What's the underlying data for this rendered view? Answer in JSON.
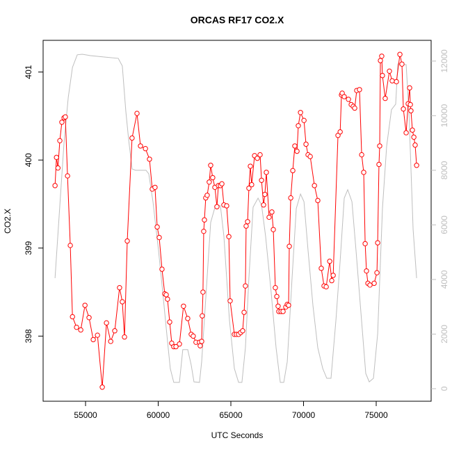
{
  "chart_data": {
    "type": "line",
    "title": "ORCAS RF17 CO2.X",
    "x_label": "UTC Seconds",
    "y_label": "CO2.X",
    "xlim": [
      52080,
      78780
    ],
    "ylim": [
      397.26,
      401.36
    ],
    "y2lim": [
      -460,
      12760
    ],
    "xticks": [
      55000,
      60000,
      65000,
      70000,
      75000
    ],
    "yticks": [
      398,
      399,
      400,
      401
    ],
    "y2ticks": [
      0,
      2000,
      4000,
      6000,
      8000,
      10000,
      12000
    ],
    "y2_color": "#bebebe",
    "grid": false,
    "series": [
      {
        "color": "#ff0000",
        "marker": "circle",
        "x": [
          52900,
          53000,
          53100,
          53230,
          53370,
          53520,
          53610,
          53760,
          53950,
          54100,
          54380,
          54670,
          54960,
          55240,
          55530,
          55820,
          56150,
          56440,
          56730,
          57010,
          57340,
          57530,
          57680,
          57870,
          58200,
          58540,
          58780,
          59120,
          59400,
          59590,
          59780,
          59930,
          60070,
          60260,
          60450,
          60550,
          60640,
          60790,
          60930,
          61070,
          61220,
          61460,
          61740,
          62030,
          62270,
          62410,
          62600,
          62840,
          62890,
          62990,
          63030,
          63080,
          63130,
          63180,
          63270,
          63370,
          63510,
          63610,
          63750,
          63900,
          64040,
          64140,
          64280,
          64380,
          64520,
          64710,
          64860,
          64950,
          65240,
          65380,
          65530,
          65670,
          65810,
          65910,
          66000,
          66050,
          66150,
          66240,
          66340,
          66430,
          66630,
          66820,
          67010,
          67110,
          67250,
          67340,
          67440,
          67630,
          67820,
          67920,
          68060,
          68160,
          68250,
          68300,
          68450,
          68590,
          68780,
          68880,
          68970,
          69020,
          69120,
          69260,
          69400,
          69550,
          69640,
          69790,
          70030,
          70170,
          70310,
          70460,
          70750,
          70980,
          71220,
          71410,
          71560,
          71800,
          71940,
          72040,
          72370,
          72520,
          72610,
          72660,
          72800,
          73090,
          73280,
          73420,
          73520,
          73660,
          73850,
          74000,
          74140,
          74240,
          74330,
          74430,
          74570,
          74860,
          75050,
          75100,
          75190,
          75240,
          75290,
          75380,
          75430,
          75620,
          75910,
          76100,
          76390,
          76630,
          76770,
          76870,
          77060,
          77200,
          77300,
          77350,
          77390,
          77490,
          77590,
          77680,
          77780
        ],
        "values": [
          399.71,
          400.03,
          399.91,
          400.22,
          400.43,
          400.48,
          400.49,
          399.82,
          399.03,
          398.22,
          398.1,
          398.07,
          398.35,
          398.21,
          397.96,
          398.01,
          397.42,
          398.15,
          397.94,
          398.06,
          398.55,
          398.39,
          397.99,
          399.08,
          400.25,
          400.53,
          400.16,
          400.13,
          400.01,
          399.67,
          399.69,
          399.24,
          399.12,
          398.76,
          398.48,
          398.47,
          398.42,
          398.16,
          397.92,
          397.88,
          397.88,
          397.91,
          398.34,
          398.2,
          398.02,
          398.0,
          397.93,
          397.93,
          397.89,
          397.94,
          398.23,
          398.5,
          399.19,
          399.32,
          399.57,
          399.6,
          399.75,
          399.94,
          399.8,
          399.69,
          399.47,
          399.71,
          399.71,
          399.73,
          399.49,
          399.48,
          399.13,
          398.4,
          398.02,
          398.02,
          398.02,
          398.04,
          398.06,
          398.27,
          398.57,
          399.25,
          399.3,
          399.68,
          399.93,
          399.72,
          400.05,
          400.02,
          400.06,
          399.77,
          399.49,
          399.61,
          399.86,
          399.35,
          399.41,
          399.21,
          398.55,
          398.45,
          398.34,
          398.28,
          398.28,
          398.28,
          398.33,
          398.36,
          398.35,
          399.02,
          399.57,
          399.88,
          400.16,
          400.1,
          400.39,
          400.54,
          400.45,
          400.18,
          400.06,
          400.04,
          399.71,
          399.54,
          398.77,
          398.57,
          398.56,
          398.85,
          398.63,
          398.69,
          400.28,
          400.32,
          400.74,
          400.76,
          400.72,
          400.69,
          400.63,
          400.61,
          400.59,
          400.79,
          400.8,
          400.06,
          399.86,
          399.05,
          398.74,
          398.6,
          398.58,
          398.6,
          398.72,
          399.06,
          399.95,
          400.16,
          401.13,
          401.18,
          400.96,
          400.7,
          401.01,
          400.9,
          400.89,
          401.2,
          401.09,
          400.58,
          400.31,
          400.64,
          400.82,
          400.63,
          400.56,
          400.34,
          400.26,
          400.17,
          399.94
        ]
      },
      {
        "color": "#bebebe",
        "axis": "y2",
        "x": [
          52900,
          53200,
          53520,
          53810,
          54100,
          54430,
          54770,
          55340,
          56290,
          57250,
          57530,
          57770,
          57960,
          58200,
          58440,
          59160,
          59350,
          59640,
          60020,
          60310,
          60590,
          60830,
          61070,
          61460,
          61690,
          62030,
          62270,
          62460,
          62840,
          62990,
          63270,
          63610,
          63950,
          64280,
          64520,
          64900,
          65240,
          65530,
          65760,
          66000,
          66240,
          66530,
          66870,
          67110,
          67390,
          67770,
          68110,
          68400,
          68640,
          68880,
          69210,
          69500,
          69790,
          70030,
          70310,
          70650,
          70980,
          71320,
          71600,
          71890,
          72230,
          72520,
          72800,
          73040,
          73330,
          73610,
          73950,
          74280,
          74520,
          74810,
          75100,
          75430,
          75720,
          76050,
          76340,
          76490,
          77060,
          77250,
          77540,
          77780
        ],
        "values": [
          4050,
          6470,
          9020,
          10670,
          11770,
          12230,
          12250,
          12200,
          12150,
          12100,
          11820,
          10170,
          9150,
          8050,
          8000,
          8000,
          7870,
          6850,
          5070,
          3540,
          2010,
          740,
          230,
          230,
          1430,
          1430,
          870,
          250,
          230,
          990,
          3290,
          6090,
          6730,
          6700,
          5580,
          2520,
          740,
          230,
          230,
          1500,
          4050,
          6650,
          6980,
          6730,
          5580,
          3540,
          1500,
          230,
          230,
          990,
          4050,
          6600,
          7130,
          6850,
          5070,
          3030,
          1500,
          740,
          380,
          380,
          2520,
          4690,
          6980,
          7290,
          6850,
          5070,
          2780,
          560,
          250,
          380,
          2010,
          6600,
          8890,
          10220,
          10420,
          11900,
          11870,
          10170,
          5830,
          4050
        ]
      }
    ]
  }
}
